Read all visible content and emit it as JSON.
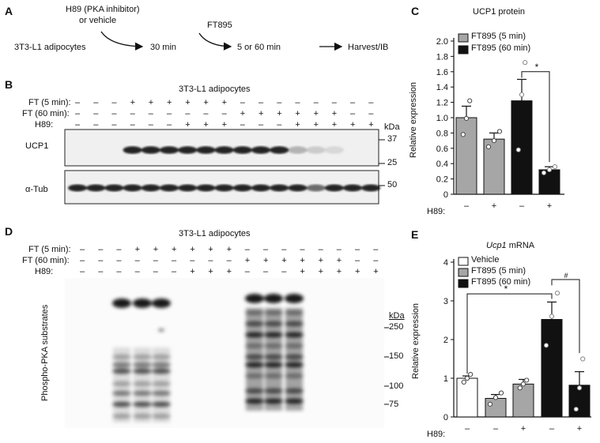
{
  "panels": {
    "A": {
      "letter": "A",
      "start": "3T3-L1 adipocytes",
      "treat1_line1": "H89 (PKA inhibitor)",
      "treat1_line2": "or vehicle",
      "time1": "30 min",
      "treat2": "FT895",
      "time2": "5 or 60 min",
      "end": "Harvest/IB"
    },
    "B": {
      "letter": "B",
      "title": "3T3-L1 adipocytes",
      "row_labels": [
        "FT (5 min):",
        "FT (60 min):",
        "H89:"
      ],
      "lane_signs": {
        "ft5": [
          "–",
          "–",
          "–",
          "+",
          "+",
          "+",
          "+",
          "+",
          "+",
          "–",
          "–",
          "–",
          "–",
          "–",
          "–",
          "–",
          "–"
        ],
        "ft60": [
          "–",
          "–",
          "–",
          "–",
          "–",
          "–",
          "–",
          "–",
          "–",
          "+",
          "+",
          "+",
          "+",
          "+",
          "+",
          "–",
          "–"
        ],
        "h89": [
          "–",
          "–",
          "–",
          "–",
          "–",
          "–",
          "+",
          "+",
          "+",
          "–",
          "–",
          "–",
          "+",
          "+",
          "+",
          "+",
          "+"
        ]
      },
      "blot1_label": "UCP1",
      "blot2_label": "α-Tub",
      "kda_header": "kDa",
      "kda_markers": [
        "37",
        "25",
        "50"
      ]
    },
    "C": {
      "letter": "C",
      "title": "UCP1 protein",
      "ylabel": "Relative expression",
      "yticks": [
        "0",
        "0.2",
        "0.4",
        "0.6",
        "0.8",
        "1.0",
        "1.2",
        "1.4",
        "1.6",
        "1.8",
        "2.0"
      ],
      "legend": [
        "FT895 (5 min)",
        "FT895 (60 min)"
      ],
      "h89_label": "H89:",
      "h89_signs": [
        "–",
        "+",
        "–",
        "+"
      ],
      "sig": "*"
    },
    "D": {
      "letter": "D",
      "title": "3T3-L1 adipocytes",
      "row_labels": [
        "FT (5 min):",
        "FT (60 min):",
        "H89:"
      ],
      "lane_signs": {
        "ft5": [
          "–",
          "–",
          "–",
          "+",
          "+",
          "+",
          "+",
          "+",
          "+",
          "–",
          "–",
          "–",
          "–",
          "–",
          "–",
          "–",
          "–"
        ],
        "ft60": [
          "–",
          "–",
          "–",
          "–",
          "–",
          "–",
          "–",
          "–",
          "–",
          "+",
          "+",
          "+",
          "+",
          "+",
          "+",
          "–",
          "–"
        ],
        "h89": [
          "–",
          "–",
          "–",
          "–",
          "–",
          "–",
          "+",
          "+",
          "+",
          "–",
          "–",
          "–",
          "+",
          "+",
          "+",
          "+",
          "+"
        ]
      },
      "blot_label": "Phospho-PKA substrates",
      "kda_header": "kDa",
      "kda_markers": [
        "250",
        "150",
        "100",
        "75"
      ]
    },
    "E": {
      "letter": "E",
      "title_italic": "Ucp1",
      "title_rest": " mRNA",
      "ylabel": "Relative expression",
      "yticks": [
        "0",
        "1",
        "2",
        "3",
        "4"
      ],
      "legend": [
        "Vehicle",
        "FT895 (5 min)",
        "FT895 (60 min)"
      ],
      "h89_label": "H89:",
      "h89_signs": [
        "–",
        "–",
        "+",
        "–",
        "+"
      ],
      "sig1": "*",
      "sig2": "#"
    }
  },
  "colors": {
    "white_bar": "#ffffff",
    "gray_bar": "#a6a6a6",
    "black_bar": "#111111"
  },
  "chart_data": [
    {
      "type": "bar",
      "title": "UCP1 protein",
      "ylabel": "Relative expression",
      "ylim": [
        0,
        2.0
      ],
      "categories": [
        "FT895 (5 min) / H89 –",
        "FT895 (5 min) / H89 +",
        "FT895 (60 min) / H89 –",
        "FT895 (60 min) / H89 +"
      ],
      "values": [
        1.0,
        0.72,
        1.22,
        0.32
      ],
      "errors": [
        0.15,
        0.08,
        0.28,
        0.04
      ],
      "points": [
        [
          0.78,
          0.99,
          1.22
        ],
        [
          0.62,
          0.7,
          0.82
        ],
        [
          0.58,
          1.3,
          1.72
        ],
        [
          0.28,
          0.32,
          0.36
        ]
      ],
      "fill": [
        "#a6a6a6",
        "#a6a6a6",
        "#111111",
        "#111111"
      ],
      "legend": [
        "FT895 (5 min)",
        "FT895 (60 min)"
      ]
    },
    {
      "type": "bar",
      "title": "Ucp1 mRNA",
      "ylabel": "Relative expression",
      "ylim": [
        0,
        4
      ],
      "categories": [
        "Vehicle / H89 –",
        "FT895 (5 min) / H89 –",
        "FT895 (5 min) / H89 +",
        "FT895 (60 min) / H89 –",
        "FT895 (60 min) / H89 +"
      ],
      "values": [
        1.0,
        0.48,
        0.85,
        2.52,
        0.82
      ],
      "errors": [
        0.06,
        0.1,
        0.12,
        0.45,
        0.35
      ],
      "points": [
        [
          0.9,
          1.0,
          1.1
        ],
        [
          0.33,
          0.5,
          0.62
        ],
        [
          0.75,
          0.85,
          0.95
        ],
        [
          1.85,
          2.6,
          3.2
        ],
        [
          0.2,
          0.75,
          1.5
        ]
      ],
      "fill": [
        "#ffffff",
        "#a6a6a6",
        "#a6a6a6",
        "#111111",
        "#111111"
      ],
      "legend": [
        "Vehicle",
        "FT895 (5 min)",
        "FT895 (60 min)"
      ]
    }
  ]
}
